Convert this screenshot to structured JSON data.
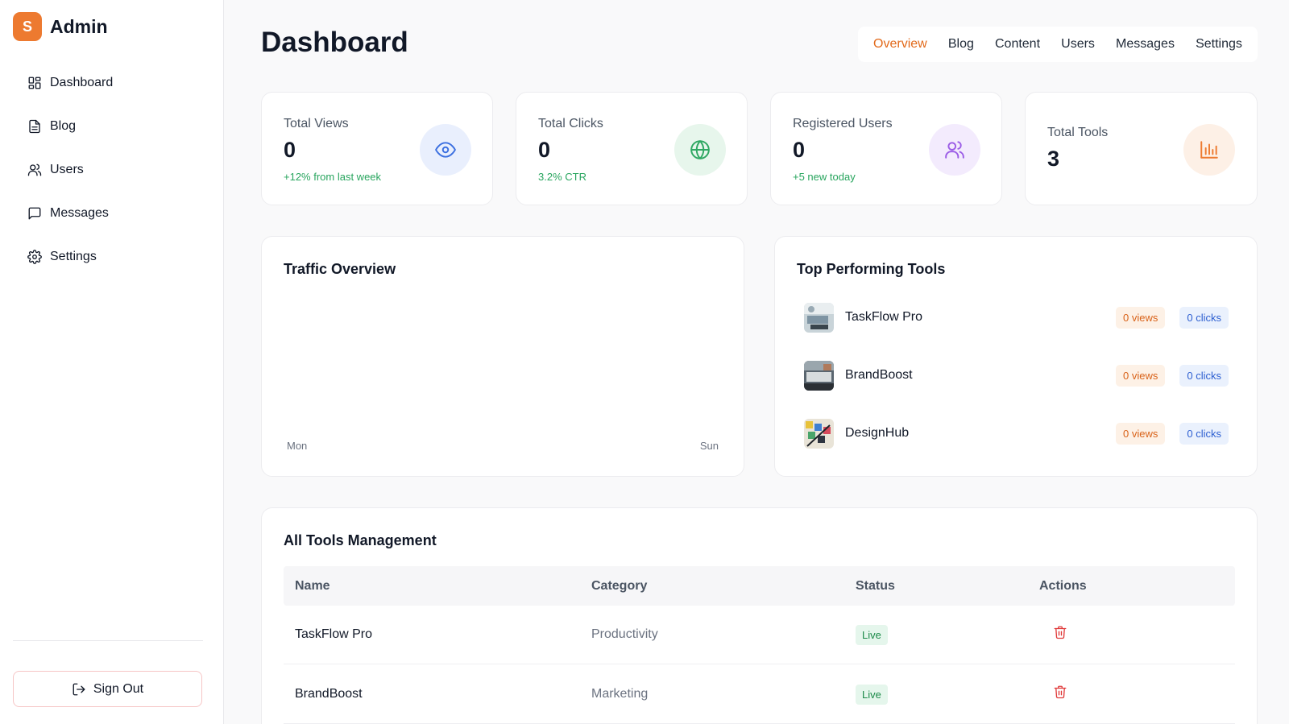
{
  "sidebar": {
    "logo_letter": "S",
    "brand_name": "Admin",
    "items": [
      {
        "label": "Dashboard",
        "icon": "dashboard-icon"
      },
      {
        "label": "Blog",
        "icon": "document-icon"
      },
      {
        "label": "Users",
        "icon": "users-icon"
      },
      {
        "label": "Messages",
        "icon": "message-icon"
      },
      {
        "label": "Settings",
        "icon": "gear-icon"
      }
    ],
    "sign_out_label": "Sign Out"
  },
  "header": {
    "title": "Dashboard",
    "tabs": [
      {
        "label": "Overview",
        "active": true
      },
      {
        "label": "Blog",
        "active": false
      },
      {
        "label": "Content",
        "active": false
      },
      {
        "label": "Users",
        "active": false
      },
      {
        "label": "Messages",
        "active": false
      },
      {
        "label": "Settings",
        "active": false
      }
    ]
  },
  "stats": [
    {
      "label": "Total Views",
      "value": "0",
      "sub": "+12% from last week",
      "icon": "eye-icon",
      "icon_bg": "#e9effd",
      "icon_color": "#3b6fe0"
    },
    {
      "label": "Total Clicks",
      "value": "0",
      "sub": "3.2% CTR",
      "icon": "globe-icon",
      "icon_bg": "#e7f6ec",
      "icon_color": "#2fa862"
    },
    {
      "label": "Registered Users",
      "value": "0",
      "sub": "+5 new today",
      "icon": "users-icon",
      "icon_bg": "#f3ebfd",
      "icon_color": "#9b5ce6"
    },
    {
      "label": "Total Tools",
      "value": "3",
      "sub": "",
      "icon": "bar-chart-icon",
      "icon_bg": "#fdf0e6",
      "icon_color": "#ed7a30"
    }
  ],
  "traffic": {
    "title": "Traffic Overview",
    "x_start": "Mon",
    "x_end": "Sun"
  },
  "top_tools": {
    "title": "Top Performing Tools",
    "items": [
      {
        "name": "TaskFlow Pro",
        "views": "0 views",
        "clicks": "0 clicks"
      },
      {
        "name": "BrandBoost",
        "views": "0 views",
        "clicks": "0 clicks"
      },
      {
        "name": "DesignHub",
        "views": "0 views",
        "clicks": "0 clicks"
      }
    ]
  },
  "tools_table": {
    "title": "All Tools Management",
    "columns": [
      "Name",
      "Category",
      "Status",
      "Actions"
    ],
    "rows": [
      {
        "name": "TaskFlow Pro",
        "category": "Productivity",
        "status": "Live"
      },
      {
        "name": "BrandBoost",
        "category": "Marketing",
        "status": "Live"
      }
    ]
  },
  "colors": {
    "accent": "#ed7a30",
    "active_tab": "#e26a1b",
    "success": "#28a55e",
    "danger": "#e03a3a"
  }
}
